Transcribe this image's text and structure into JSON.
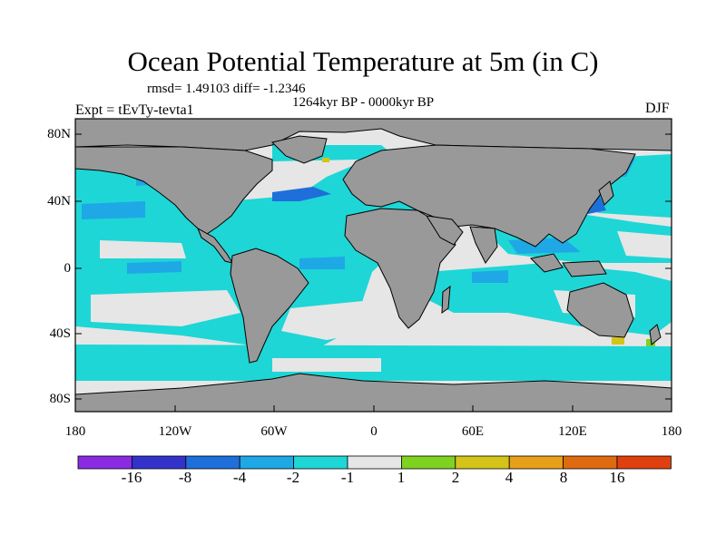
{
  "title": "Ocean Potential Temperature at 5m (in C)",
  "stats_text": "rmsd= 1.49103 diff= -1.2346",
  "period_text": "1264kyr BP - 0000kyr BP",
  "experiment_text": "Expt = tEvTy-tevta1",
  "season_text": "DJF",
  "y_axis_labels": [
    "80N",
    "40N",
    "0",
    "40S",
    "80S"
  ],
  "x_axis_labels": [
    "180",
    "120W",
    "60W",
    "0",
    "60E",
    "120E",
    "180"
  ],
  "colorbar": {
    "labels": [
      "-16",
      "-8",
      "-4",
      "-2",
      "-1",
      "1",
      "2",
      "4",
      "8",
      "16"
    ],
    "colors": [
      "#8a2be2",
      "#3333cc",
      "#1e6fd9",
      "#1fa8e6",
      "#1ed6d6",
      "#e6e6e6",
      "#7ed321",
      "#d4c41a",
      "#e6a01a",
      "#e06a10",
      "#e04010"
    ]
  },
  "map_colors": {
    "land": "#999999",
    "ocean_light_cyan": "#1ed6d6",
    "ocean_sky": "#1fa8e6",
    "ocean_blue": "#1e6fd9",
    "near_zero": "#e6e6e6",
    "warm_green": "#7ed321",
    "warm_yellow": "#d4c41a"
  }
}
